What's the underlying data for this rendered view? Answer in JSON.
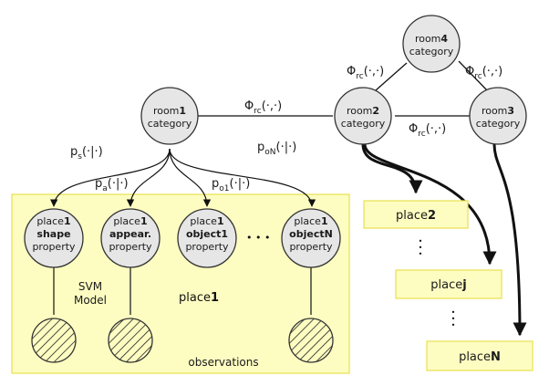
{
  "colors": {
    "node_fill": "#e6e6e6",
    "node_stroke": "#333333",
    "panel_fill": "#fdfdc2",
    "panel_stroke": "#e9e04e",
    "edge": "#111111"
  },
  "rooms": [
    {
      "id": "room1",
      "prefix": "room",
      "number": "1",
      "line2": "category"
    },
    {
      "id": "room2",
      "prefix": "room",
      "number": "2",
      "line2": "category"
    },
    {
      "id": "room3",
      "prefix": "room",
      "number": "3",
      "line2": "category"
    },
    {
      "id": "room4",
      "prefix": "room",
      "number": "4",
      "line2": "category"
    }
  ],
  "potentials": {
    "phi_main": "Φ",
    "phi_sub": "rc",
    "phi_args": "(·,·)"
  },
  "probabilities": {
    "ps": {
      "main": "p",
      "sub": "s",
      "args": "(·|·)"
    },
    "pa": {
      "main": "p",
      "sub": "a",
      "args": "(·|·)"
    },
    "po1": {
      "main": "p",
      "sub": "o1",
      "args": "(·|·)"
    },
    "poN": {
      "main": "p",
      "sub": "oN",
      "args": "(·|·)"
    }
  },
  "properties": [
    {
      "id": "shape",
      "line1_prefix": "place",
      "line1_num": "1",
      "line2": "shape",
      "line3": "property"
    },
    {
      "id": "appear",
      "line1_prefix": "place",
      "line1_num": "1",
      "line2": "appear.",
      "line3": "property"
    },
    {
      "id": "object1",
      "line1_prefix": "place",
      "line1_num": "1",
      "line2": "object1",
      "line3": "property"
    },
    {
      "id": "objectN",
      "line1_prefix": "place",
      "line1_num": "1",
      "line2": "objectN",
      "line3": "property"
    }
  ],
  "ellipsis_h": "• • •",
  "ellipsis_v": "•",
  "svm_line1": "SVM",
  "svm_line2": "Model",
  "panel_label_prefix": "place",
  "panel_label_num": "1",
  "observations_label": "observations",
  "places": [
    {
      "id": "place2",
      "prefix": "place",
      "num": "2"
    },
    {
      "id": "placej",
      "prefix": "place",
      "num": "j"
    },
    {
      "id": "placeN",
      "prefix": "place",
      "num": "N"
    }
  ]
}
